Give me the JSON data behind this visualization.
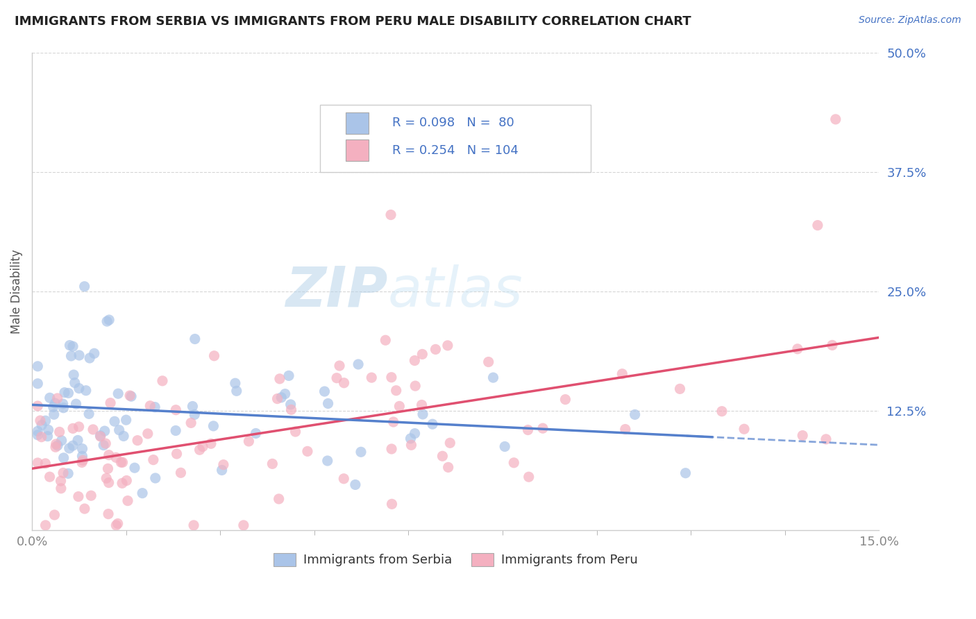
{
  "title": "IMMIGRANTS FROM SERBIA VS IMMIGRANTS FROM PERU MALE DISABILITY CORRELATION CHART",
  "source_text": "Source: ZipAtlas.com",
  "ylabel": "Male Disability",
  "xlim": [
    0.0,
    0.15
  ],
  "ylim": [
    0.0,
    0.5
  ],
  "ytick_positions": [
    0.125,
    0.25,
    0.375,
    0.5
  ],
  "ytick_labels": [
    "12.5%",
    "25.0%",
    "37.5%",
    "50.0%"
  ],
  "serbia_R": 0.098,
  "serbia_N": 80,
  "peru_R": 0.254,
  "peru_N": 104,
  "serbia_color": "#aac4e8",
  "peru_color": "#f4b0c0",
  "serbia_line_color": "#5580cc",
  "peru_line_color": "#e05070",
  "legend_text_color": "#4472c4",
  "watermark_color": "#c8dff0",
  "background_color": "#ffffff",
  "grid_color": "#cccccc",
  "title_color": "#222222",
  "source_color": "#4472c4",
  "axis_label_color": "#555555",
  "tick_label_color": "#888888"
}
